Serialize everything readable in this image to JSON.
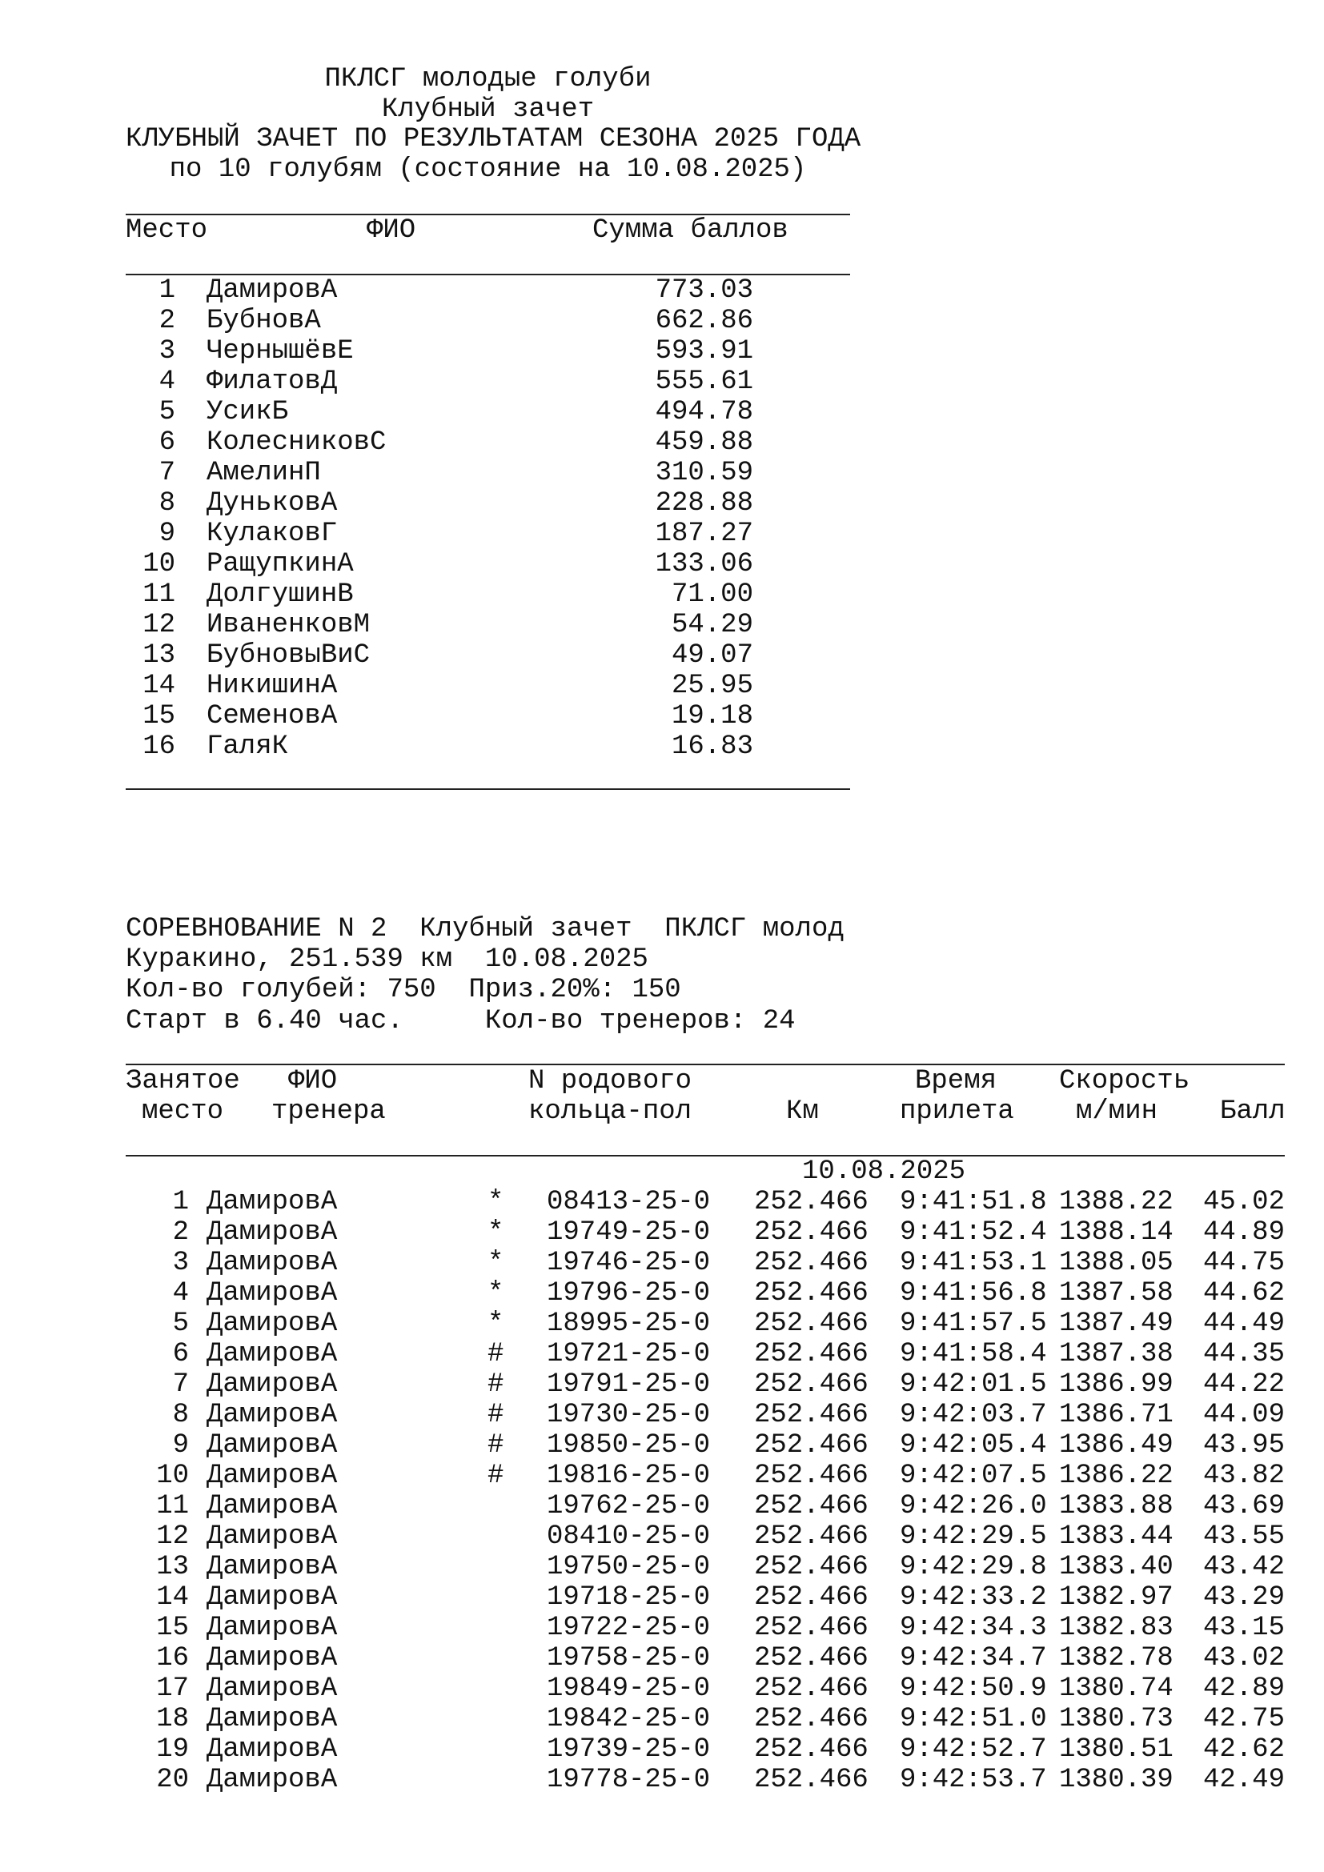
{
  "standings": {
    "title_lines": [
      "ПКЛСГ молодые голуби",
      "Клубный зачет",
      "КЛУБНЫЙ ЗАЧЕТ ПО РЕЗУЛЬТАТАМ СЕЗОНА 2025 ГОДА",
      "по 10 голубям (состояние на 10.08.2025)"
    ],
    "headers": {
      "place": "Место",
      "name": "ФИО",
      "total": "Сумма баллов"
    },
    "rows": [
      [
        "1",
        "ДамировА",
        "773.03"
      ],
      [
        "2",
        "БубновА",
        "662.86"
      ],
      [
        "3",
        "ЧернышёвЕ",
        "593.91"
      ],
      [
        "4",
        "ФилатовД",
        "555.61"
      ],
      [
        "5",
        "УсикБ",
        "494.78"
      ],
      [
        "6",
        "КолесниковС",
        "459.88"
      ],
      [
        "7",
        "АмелинП",
        "310.59"
      ],
      [
        "8",
        "ДуньковА",
        "228.88"
      ],
      [
        "9",
        "КулаковГ",
        "187.27"
      ],
      [
        "10",
        "РащупкинА",
        "133.06"
      ],
      [
        "11",
        "ДолгушинВ",
        "71.00"
      ],
      [
        "12",
        "ИваненковМ",
        "54.29"
      ],
      [
        "13",
        "БубновыВиС",
        "49.07"
      ],
      [
        "14",
        "НикишинА",
        "25.95"
      ],
      [
        "15",
        "СеменовА",
        "19.18"
      ],
      [
        "16",
        "ГаляК",
        "16.83"
      ]
    ]
  },
  "competition": {
    "info_lines": [
      "СОРЕВНОВАНИЕ N 2  Клубный зачет  ПКЛСГ молод",
      "Куракино, 251.539 км  10.08.2025",
      "Кол-во голубей: 750  Приз.20%: 150",
      "Старт в 6.40 час.     Кол-во тренеров: 24"
    ],
    "headers": {
      "place_1": "Занятое",
      "place_2": "место",
      "name_1": "ФИО",
      "name_2": "тренера",
      "ring_1": "N родового",
      "ring_2": "кольца-пол",
      "km": "Км",
      "time_1": "Время",
      "time_2": "прилета",
      "speed_1": "Скорость",
      "speed_2": "м/мин",
      "score": "Балл"
    },
    "date": "10.08.2025",
    "rows": [
      [
        "1",
        "ДамировА",
        "*",
        "08413-25-0",
        "252.466",
        "9:41:51.8",
        "1388.22",
        "45.02"
      ],
      [
        "2",
        "ДамировА",
        "*",
        "19749-25-0",
        "252.466",
        "9:41:52.4",
        "1388.14",
        "44.89"
      ],
      [
        "3",
        "ДамировА",
        "*",
        "19746-25-0",
        "252.466",
        "9:41:53.1",
        "1388.05",
        "44.75"
      ],
      [
        "4",
        "ДамировА",
        "*",
        "19796-25-0",
        "252.466",
        "9:41:56.8",
        "1387.58",
        "44.62"
      ],
      [
        "5",
        "ДамировА",
        "*",
        "18995-25-0",
        "252.466",
        "9:41:57.5",
        "1387.49",
        "44.49"
      ],
      [
        "6",
        "ДамировА",
        "#",
        "19721-25-0",
        "252.466",
        "9:41:58.4",
        "1387.38",
        "44.35"
      ],
      [
        "7",
        "ДамировА",
        "#",
        "19791-25-0",
        "252.466",
        "9:42:01.5",
        "1386.99",
        "44.22"
      ],
      [
        "8",
        "ДамировА",
        "#",
        "19730-25-0",
        "252.466",
        "9:42:03.7",
        "1386.71",
        "44.09"
      ],
      [
        "9",
        "ДамировА",
        "#",
        "19850-25-0",
        "252.466",
        "9:42:05.4",
        "1386.49",
        "43.95"
      ],
      [
        "10",
        "ДамировА",
        "#",
        "19816-25-0",
        "252.466",
        "9:42:07.5",
        "1386.22",
        "43.82"
      ],
      [
        "11",
        "ДамировА",
        "",
        "19762-25-0",
        "252.466",
        "9:42:26.0",
        "1383.88",
        "43.69"
      ],
      [
        "12",
        "ДамировА",
        "",
        "08410-25-0",
        "252.466",
        "9:42:29.5",
        "1383.44",
        "43.55"
      ],
      [
        "13",
        "ДамировА",
        "",
        "19750-25-0",
        "252.466",
        "9:42:29.8",
        "1383.40",
        "43.42"
      ],
      [
        "14",
        "ДамировА",
        "",
        "19718-25-0",
        "252.466",
        "9:42:33.2",
        "1382.97",
        "43.29"
      ],
      [
        "15",
        "ДамировА",
        "",
        "19722-25-0",
        "252.466",
        "9:42:34.3",
        "1382.83",
        "43.15"
      ],
      [
        "16",
        "ДамировА",
        "",
        "19758-25-0",
        "252.466",
        "9:42:34.7",
        "1382.78",
        "43.02"
      ],
      [
        "17",
        "ДамировА",
        "",
        "19849-25-0",
        "252.466",
        "9:42:50.9",
        "1380.74",
        "42.89"
      ],
      [
        "18",
        "ДамировА",
        "",
        "19842-25-0",
        "252.466",
        "9:42:51.0",
        "1380.73",
        "42.75"
      ],
      [
        "19",
        "ДамировА",
        "",
        "19739-25-0",
        "252.466",
        "9:42:52.7",
        "1380.51",
        "42.62"
      ],
      [
        "20",
        "ДамировА",
        "",
        "19778-25-0",
        "252.466",
        "9:42:53.7",
        "1380.39",
        "42.49"
      ]
    ]
  }
}
